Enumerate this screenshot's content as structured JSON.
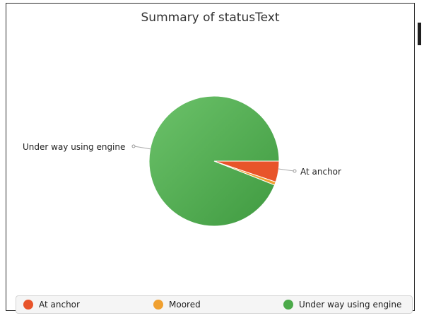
{
  "chart_data": {
    "type": "pie",
    "title": "Summary of statusText",
    "slices": [
      {
        "name": "At anchor",
        "value": 5.2,
        "color": "#e8542a"
      },
      {
        "name": "Moored",
        "value": 0.8,
        "color": "#f0a030"
      },
      {
        "name": "Under way using engine",
        "value": 94.0,
        "color": "#4caa4a"
      }
    ],
    "legend": "bottom",
    "labels": {
      "under_way": "Under way using engine",
      "at_anchor": "At anchor"
    }
  },
  "legend_items": [
    {
      "label": "At anchor",
      "color": "#e8542a"
    },
    {
      "label": "Moored",
      "color": "#f0a030"
    },
    {
      "label": "Under way using engine",
      "color": "#4caa4a"
    }
  ]
}
